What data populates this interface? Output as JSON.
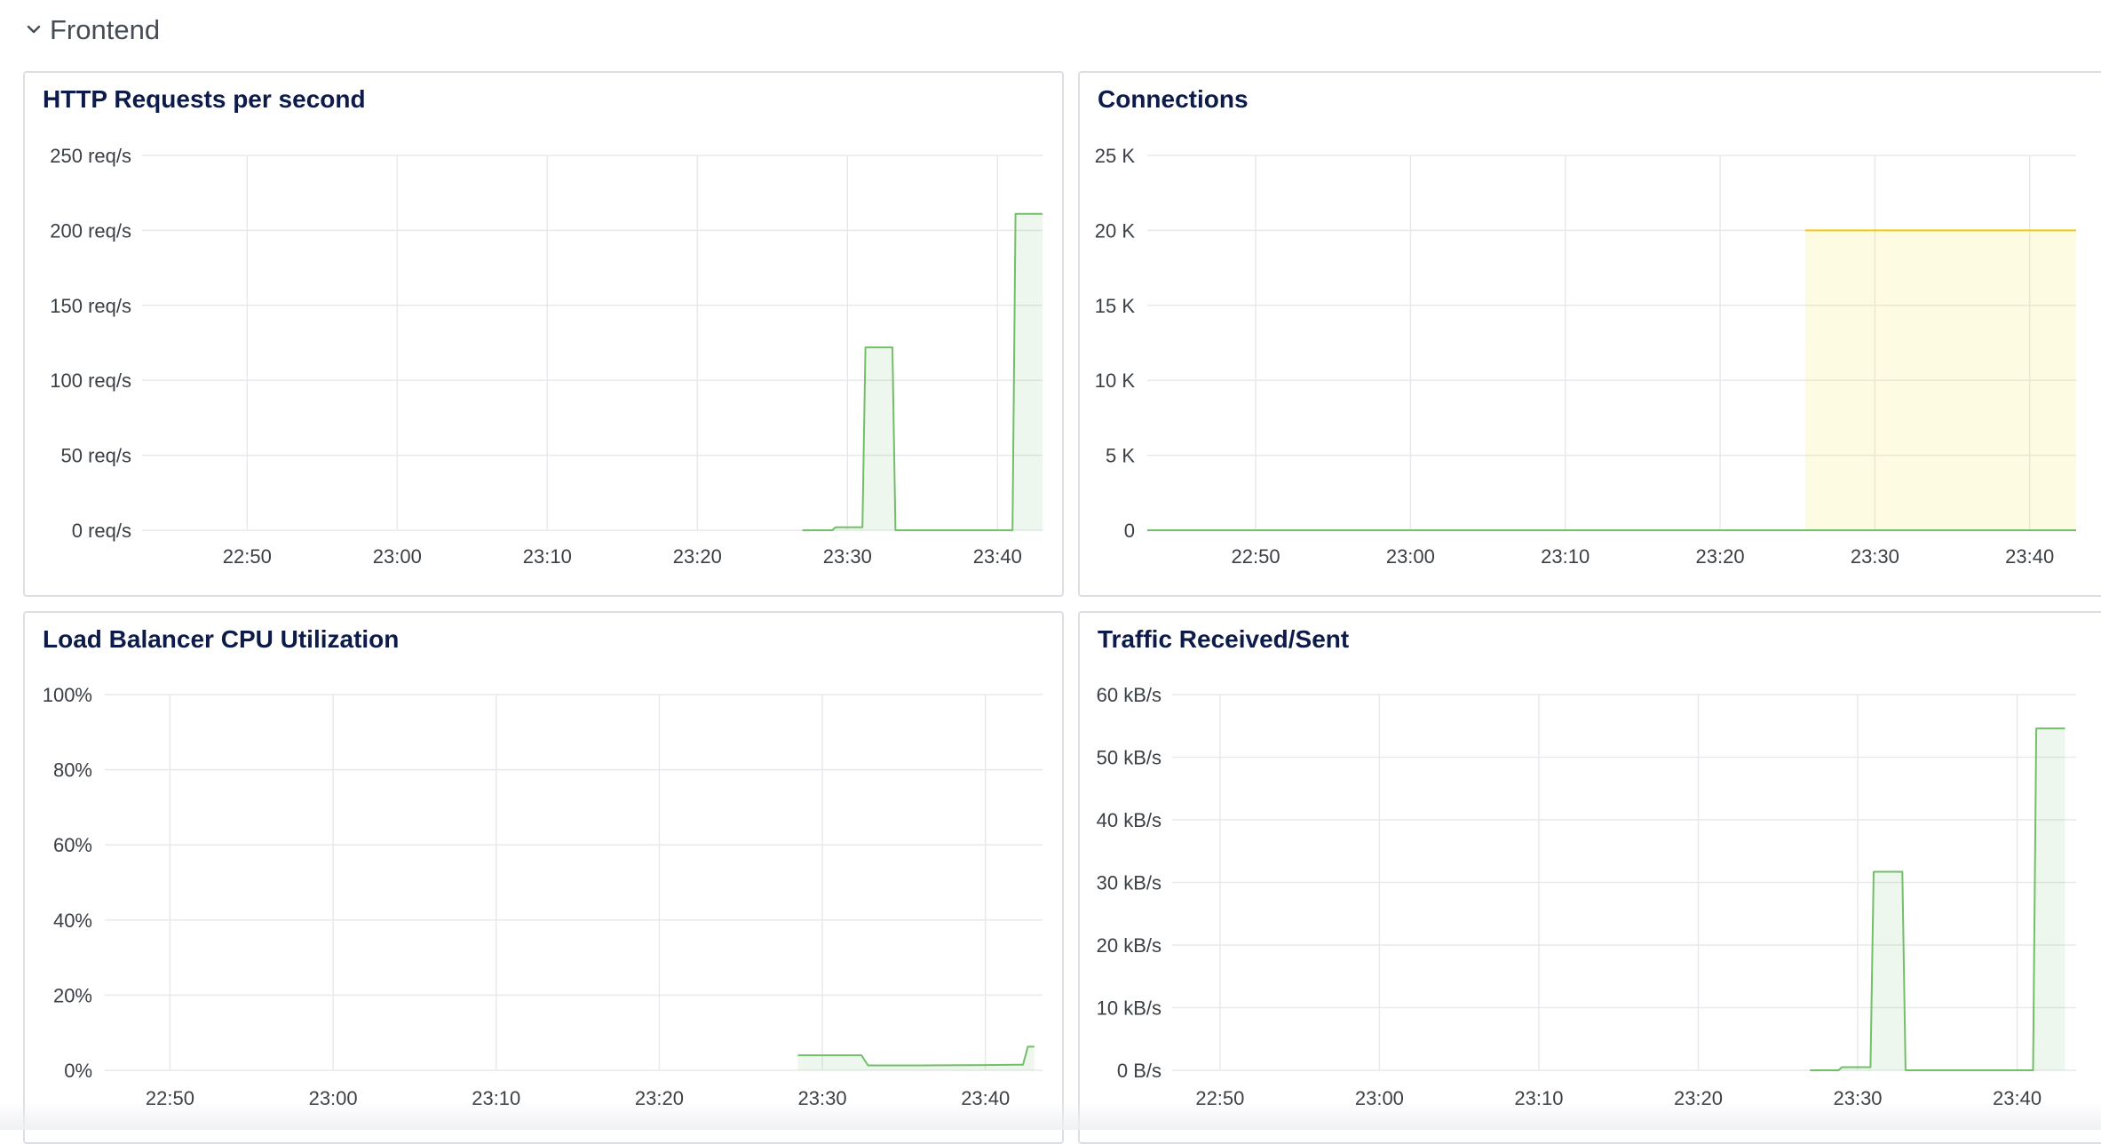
{
  "row": {
    "title": "Frontend",
    "chevron_icon": "chevron-down-icon"
  },
  "colors": {
    "series_green": "#73bf69",
    "series_yellow": "#f2cc0c",
    "fill_green": "#73bf69",
    "fill_yellow": "#fade2a",
    "panel_title": "#0d1b4a",
    "row_title": "#464c54"
  },
  "x_ticks": [
    "22:50",
    "23:00",
    "23:10",
    "23:20",
    "23:30",
    "23:40"
  ],
  "panels": [
    {
      "title": "HTTP Requests per second",
      "y_ticks": [
        "250 req/s",
        "200 req/s",
        "150 req/s",
        "100 req/s",
        "50 req/s",
        "0 req/s"
      ]
    },
    {
      "title": "Connections",
      "y_ticks": [
        "25 K",
        "20 K",
        "15 K",
        "10 K",
        "5 K",
        "0"
      ]
    },
    {
      "title": "Load Balancer CPU Utilization",
      "y_ticks": [
        "100%",
        "80%",
        "60%",
        "40%",
        "20%",
        "0%"
      ]
    },
    {
      "title": "Traffic Received/Sent",
      "y_ticks": [
        "60 kB/s",
        "50 kB/s",
        "40 kB/s",
        "30 kB/s",
        "20 kB/s",
        "10 kB/s",
        "0 B/s"
      ]
    }
  ],
  "chart_data": [
    {
      "type": "area",
      "title": "HTTP Requests per second",
      "x_ticks": [
        "22:50",
        "23:00",
        "23:10",
        "23:20",
        "23:30",
        "23:40"
      ],
      "ylim": [
        0,
        250
      ],
      "y_unit": "req/s",
      "grid": true,
      "series": [
        {
          "color": "#73bf69",
          "x": [
            "23:27",
            "23:29",
            "23:29.2",
            "23:31",
            "23:31.2",
            "23:33",
            "23:33.2",
            "23:41",
            "23:41.2",
            "23:43"
          ],
          "values": [
            0,
            0,
            2,
            2,
            122,
            122,
            0,
            0,
            211,
            211
          ]
        }
      ]
    },
    {
      "type": "area",
      "title": "Connections",
      "x_ticks": [
        "22:50",
        "23:00",
        "23:10",
        "23:20",
        "23:30",
        "23:40"
      ],
      "ylim": [
        0,
        25000
      ],
      "grid": true,
      "series": [
        {
          "color": "#f2cc0c",
          "x_start": "23:25.5",
          "x_end": "23:43",
          "value": 20000
        },
        {
          "color": "#73bf69",
          "x_start": "22:43",
          "x_end": "23:43",
          "value": 0
        }
      ]
    },
    {
      "type": "area",
      "title": "Load Balancer CPU Utilization",
      "x_ticks": [
        "22:50",
        "23:00",
        "23:10",
        "23:20",
        "23:30",
        "23:40"
      ],
      "ylim": [
        0,
        100
      ],
      "y_unit": "%",
      "grid": true,
      "series": [
        {
          "color": "#73bf69",
          "x": [
            "23:28.5",
            "23:32.4",
            "23:32.8",
            "23:36",
            "23:40",
            "23:42.3",
            "23:42.6",
            "23:43"
          ],
          "values": [
            4,
            4,
            1.3,
            1.3,
            1.4,
            1.5,
            6.3,
            6.3
          ]
        }
      ]
    },
    {
      "type": "area",
      "title": "Traffic Received/Sent",
      "x_ticks": [
        "22:50",
        "23:00",
        "23:10",
        "23:20",
        "23:30",
        "23:40"
      ],
      "ylim": [
        0,
        60
      ],
      "y_unit": "kB/s",
      "grid": true,
      "series": [
        {
          "color": "#73bf69",
          "x": [
            "23:27",
            "23:28.8",
            "23:29",
            "23:30.8",
            "23:31",
            "23:32.8",
            "23:33",
            "23:41",
            "23:41.2",
            "23:43"
          ],
          "values": [
            0,
            0,
            0.5,
            0.5,
            31.7,
            31.7,
            0,
            0,
            54.6,
            54.6
          ]
        }
      ]
    }
  ]
}
